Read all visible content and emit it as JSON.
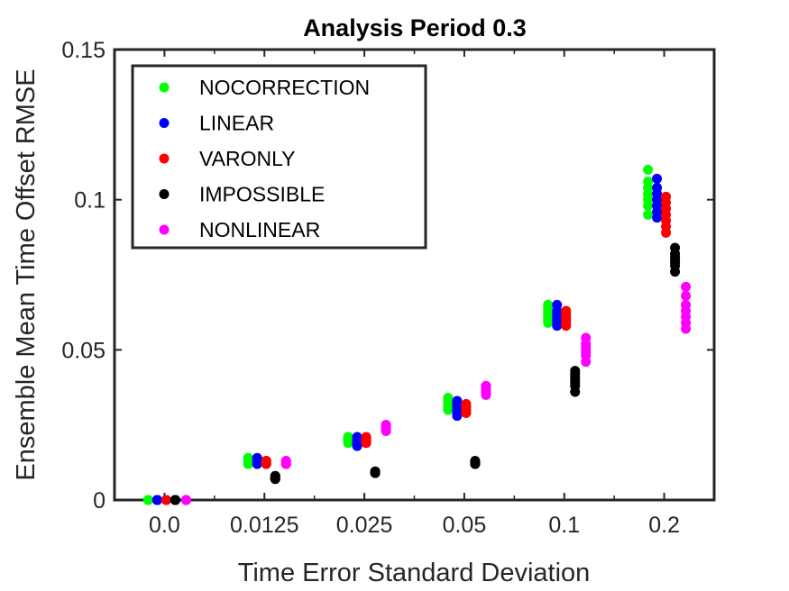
{
  "chart_data": {
    "type": "scatter",
    "title": "Analysis Period 0.3",
    "xlabel": "Time Error Standard Deviation",
    "ylabel": "Ensemble Mean Time Offset RMSE",
    "categories": [
      "0.0",
      "0.0125",
      "0.025",
      "0.05",
      "0.1",
      "0.2"
    ],
    "ylim": [
      0,
      0.15
    ],
    "yticks": [
      0,
      0.05,
      0.1,
      0.15
    ],
    "ytick_labels": [
      "0",
      "0.05",
      "0.1",
      "0.15"
    ],
    "legend_position": "top-left",
    "grid": false,
    "series": [
      {
        "name": "NOCORRECTION",
        "color": "#00ff00",
        "values": [
          [
            0.0,
            0.0,
            0.0,
            0.0,
            0.0,
            0.0,
            0.0
          ],
          [
            0.012,
            0.013,
            0.014,
            0.012,
            0.013,
            0.014,
            0.013
          ],
          [
            0.019,
            0.02,
            0.021,
            0.02,
            0.019,
            0.02,
            0.021
          ],
          [
            0.03,
            0.031,
            0.032,
            0.033,
            0.034,
            0.031,
            0.032
          ],
          [
            0.06,
            0.061,
            0.062,
            0.063,
            0.064,
            0.065,
            0.059
          ],
          [
            0.095,
            0.098,
            0.1,
            0.102,
            0.104,
            0.106,
            0.11
          ]
        ]
      },
      {
        "name": "LINEAR",
        "color": "#0000ff",
        "values": [
          [
            0.0,
            0.0,
            0.0,
            0.0,
            0.0,
            0.0,
            0.0
          ],
          [
            0.012,
            0.013,
            0.014,
            0.013,
            0.012,
            0.014,
            0.013
          ],
          [
            0.018,
            0.019,
            0.02,
            0.021,
            0.019,
            0.02,
            0.018
          ],
          [
            0.028,
            0.029,
            0.03,
            0.031,
            0.032,
            0.033,
            0.03
          ],
          [
            0.058,
            0.059,
            0.06,
            0.061,
            0.062,
            0.063,
            0.065
          ],
          [
            0.094,
            0.096,
            0.098,
            0.1,
            0.102,
            0.104,
            0.107
          ]
        ]
      },
      {
        "name": "VARONLY",
        "color": "#ff0000",
        "values": [
          [
            0.0,
            0.0,
            0.0,
            0.0,
            0.0,
            0.0,
            0.0
          ],
          [
            0.012,
            0.013,
            0.012,
            0.013,
            0.012,
            0.013,
            0.013
          ],
          [
            0.019,
            0.02,
            0.021,
            0.019,
            0.02,
            0.019,
            0.02
          ],
          [
            0.029,
            0.03,
            0.031,
            0.032,
            0.03,
            0.029,
            0.031
          ],
          [
            0.058,
            0.059,
            0.06,
            0.061,
            0.062,
            0.063,
            0.06
          ],
          [
            0.089,
            0.091,
            0.093,
            0.095,
            0.097,
            0.099,
            0.101
          ]
        ]
      },
      {
        "name": "IMPOSSIBLE",
        "color": "#000000",
        "values": [
          [
            0.0,
            0.0,
            0.0,
            0.0,
            0.0,
            0.0,
            0.0
          ],
          [
            0.007,
            0.008,
            0.007,
            0.008,
            0.007,
            0.008,
            0.007
          ],
          [
            0.009,
            0.0095,
            0.009,
            0.0095,
            0.009,
            0.0095,
            0.009
          ],
          [
            0.012,
            0.0125,
            0.013,
            0.012,
            0.0125,
            0.013,
            0.012
          ],
          [
            0.036,
            0.038,
            0.039,
            0.04,
            0.041,
            0.042,
            0.043
          ],
          [
            0.076,
            0.078,
            0.079,
            0.08,
            0.081,
            0.082,
            0.084
          ]
        ]
      },
      {
        "name": "NONLINEAR",
        "color": "#ff00ff",
        "values": [
          [
            0.0,
            0.0,
            0.0,
            0.0,
            0.0,
            0.0,
            0.0
          ],
          [
            0.012,
            0.013,
            0.012,
            0.013,
            0.012,
            0.013,
            0.012
          ],
          [
            0.023,
            0.024,
            0.025,
            0.023,
            0.024,
            0.025,
            0.024
          ],
          [
            0.035,
            0.036,
            0.037,
            0.038,
            0.036,
            0.037,
            0.038
          ],
          [
            0.046,
            0.048,
            0.049,
            0.05,
            0.051,
            0.052,
            0.054
          ],
          [
            0.057,
            0.059,
            0.061,
            0.063,
            0.065,
            0.068,
            0.071
          ]
        ]
      }
    ]
  }
}
